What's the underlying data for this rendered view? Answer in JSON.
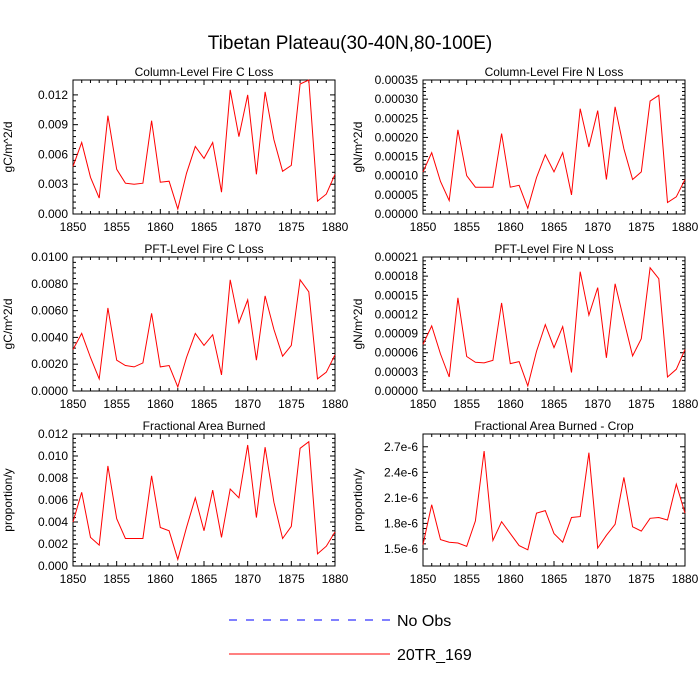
{
  "title": "Tibetan Plateau(30-40N,80-100E)",
  "legend": {
    "items": [
      {
        "label": "No Obs",
        "color": "#0000ff",
        "dash": true
      },
      {
        "label": "20TR_169",
        "color": "#ff0000",
        "dash": false
      }
    ]
  },
  "chart_data": [
    {
      "type": "line",
      "title": "Column-Level Fire C Loss",
      "ylabel": "gC/m^2/d",
      "xlim": [
        1850,
        1880
      ],
      "xticks": [
        "1850",
        "1855",
        "1860",
        "1865",
        "1870",
        "1875",
        "1880"
      ],
      "ylim": [
        0,
        0.0135
      ],
      "yticks": [
        "0.000",
        "0.003",
        "0.006",
        "0.009",
        "0.012"
      ],
      "ytick_values": [
        0,
        0.003,
        0.006,
        0.009,
        0.012
      ],
      "series": [
        {
          "name": "20TR_169",
          "color": "#ff0000",
          "x": [
            1850,
            1851,
            1852,
            1853,
            1854,
            1855,
            1856,
            1857,
            1858,
            1859,
            1860,
            1861,
            1862,
            1863,
            1864,
            1865,
            1866,
            1867,
            1868,
            1869,
            1870,
            1871,
            1872,
            1873,
            1874,
            1875,
            1876,
            1877,
            1878,
            1879,
            1880
          ],
          "y": [
            0.0048,
            0.0072,
            0.0037,
            0.0016,
            0.0099,
            0.0045,
            0.0031,
            0.003,
            0.0031,
            0.0094,
            0.0032,
            0.0033,
            0.0005,
            0.0041,
            0.0068,
            0.0056,
            0.0072,
            0.0022,
            0.0125,
            0.0078,
            0.012,
            0.004,
            0.0123,
            0.0075,
            0.0043,
            0.0049,
            0.0131,
            0.0135,
            0.0013,
            0.002,
            0.004
          ]
        }
      ]
    },
    {
      "type": "line",
      "title": "Column-Level Fire N Loss",
      "ylabel": "gN/m^2/d",
      "xlim": [
        1850,
        1880
      ],
      "xticks": [
        "1850",
        "1855",
        "1860",
        "1865",
        "1870",
        "1875",
        "1880"
      ],
      "ylim": [
        0,
        0.00035
      ],
      "yticks": [
        "0.00000",
        "0.00005",
        "0.00010",
        "0.00015",
        "0.00020",
        "0.00025",
        "0.00030",
        "0.00035"
      ],
      "ytick_values": [
        0,
        5e-05,
        0.0001,
        0.00015,
        0.0002,
        0.00025,
        0.0003,
        0.00035
      ],
      "series": [
        {
          "name": "20TR_169",
          "color": "#ff0000",
          "x": [
            1850,
            1851,
            1852,
            1853,
            1854,
            1855,
            1856,
            1857,
            1858,
            1859,
            1860,
            1861,
            1862,
            1863,
            1864,
            1865,
            1866,
            1867,
            1868,
            1869,
            1870,
            1871,
            1872,
            1873,
            1874,
            1875,
            1876,
            1877,
            1878,
            1879,
            1880
          ],
          "y": [
            0.00011,
            0.00016,
            8.5e-05,
            3.5e-05,
            0.00022,
            0.0001,
            7e-05,
            7e-05,
            7e-05,
            0.00021,
            7e-05,
            7.5e-05,
            1.5e-05,
            9.5e-05,
            0.000155,
            0.00011,
            0.00016,
            5e-05,
            0.000275,
            0.000175,
            0.00027,
            9e-05,
            0.00028,
            0.00017,
            9e-05,
            0.00011,
            0.000295,
            0.00031,
            3e-05,
            4.5e-05,
            9e-05
          ]
        }
      ]
    },
    {
      "type": "line",
      "title": "PFT-Level Fire C Loss",
      "ylabel": "gC/m^2/d",
      "xlim": [
        1850,
        1880
      ],
      "xticks": [
        "1850",
        "1855",
        "1860",
        "1865",
        "1870",
        "1875",
        "1880"
      ],
      "ylim": [
        0,
        0.01
      ],
      "yticks": [
        "0.0000",
        "0.0020",
        "0.0040",
        "0.0060",
        "0.0080",
        "0.0100"
      ],
      "ytick_values": [
        0,
        0.002,
        0.004,
        0.006,
        0.008,
        0.01
      ],
      "series": [
        {
          "name": "20TR_169",
          "color": "#ff0000",
          "x": [
            1850,
            1851,
            1852,
            1853,
            1854,
            1855,
            1856,
            1857,
            1858,
            1859,
            1860,
            1861,
            1862,
            1863,
            1864,
            1865,
            1866,
            1867,
            1868,
            1869,
            1870,
            1871,
            1872,
            1873,
            1874,
            1875,
            1876,
            1877,
            1878,
            1879,
            1880
          ],
          "y": [
            0.0031,
            0.0043,
            0.0025,
            0.0009,
            0.0062,
            0.0023,
            0.0019,
            0.0018,
            0.0021,
            0.0058,
            0.0018,
            0.0019,
            0.0003,
            0.0025,
            0.0043,
            0.0034,
            0.0042,
            0.0012,
            0.0083,
            0.0051,
            0.0068,
            0.0023,
            0.0071,
            0.0046,
            0.0026,
            0.0034,
            0.0083,
            0.0074,
            0.0009,
            0.0014,
            0.0027
          ]
        }
      ]
    },
    {
      "type": "line",
      "title": "PFT-Level Fire N Loss",
      "ylabel": "gN/m^2/d",
      "xlim": [
        1850,
        1880
      ],
      "xticks": [
        "1850",
        "1855",
        "1860",
        "1865",
        "1870",
        "1875",
        "1880"
      ],
      "ylim": [
        0,
        0.00021
      ],
      "yticks": [
        "0.00000",
        "0.00003",
        "0.00006",
        "0.00009",
        "0.00012",
        "0.00015",
        "0.00018",
        "0.00021"
      ],
      "ytick_values": [
        0,
        3e-05,
        6e-05,
        9e-05,
        0.00012,
        0.00015,
        0.00018,
        0.00021
      ],
      "series": [
        {
          "name": "20TR_169",
          "color": "#ff0000",
          "x": [
            1850,
            1851,
            1852,
            1853,
            1854,
            1855,
            1856,
            1857,
            1858,
            1859,
            1860,
            1861,
            1862,
            1863,
            1864,
            1865,
            1866,
            1867,
            1868,
            1869,
            1870,
            1871,
            1872,
            1873,
            1874,
            1875,
            1876,
            1877,
            1878,
            1879,
            1880
          ],
          "y": [
            7.3e-05,
            0.000102,
            5.8e-05,
            2.2e-05,
            0.000146,
            5.4e-05,
            4.5e-05,
            4.4e-05,
            4.8e-05,
            0.000138,
            4.3e-05,
            4.6e-05,
            8e-06,
            6.2e-05,
            0.000104,
            6.8e-05,
            0.000101,
            2.9e-05,
            0.000187,
            0.000119,
            0.000162,
            5.2e-05,
            0.000168,
            0.000111,
            5.5e-05,
            8.2e-05,
            0.000193,
            0.000176,
            2.2e-05,
            3.4e-05,
            6.5e-05
          ]
        }
      ]
    },
    {
      "type": "line",
      "title": "Fractional Area Burned",
      "ylabel": "proportion/y",
      "xlim": [
        1850,
        1880
      ],
      "xticks": [
        "1850",
        "1855",
        "1860",
        "1865",
        "1870",
        "1875",
        "1880"
      ],
      "ylim": [
        0,
        0.012
      ],
      "yticks": [
        "0.000",
        "0.002",
        "0.004",
        "0.006",
        "0.008",
        "0.010",
        "0.012"
      ],
      "ytick_values": [
        0,
        0.002,
        0.004,
        0.006,
        0.008,
        0.01,
        0.012
      ],
      "series": [
        {
          "name": "20TR_169",
          "color": "#ff0000",
          "x": [
            1850,
            1851,
            1852,
            1853,
            1854,
            1855,
            1856,
            1857,
            1858,
            1859,
            1860,
            1861,
            1862,
            1863,
            1864,
            1865,
            1866,
            1867,
            1868,
            1869,
            1870,
            1871,
            1872,
            1873,
            1874,
            1875,
            1876,
            1877,
            1878,
            1879,
            1880
          ],
          "y": [
            0.004,
            0.0067,
            0.0026,
            0.0019,
            0.0091,
            0.0043,
            0.0025,
            0.0025,
            0.0025,
            0.0082,
            0.0035,
            0.0032,
            0.0006,
            0.0035,
            0.0062,
            0.0032,
            0.0069,
            0.0026,
            0.007,
            0.0062,
            0.011,
            0.0044,
            0.0108,
            0.0058,
            0.0025,
            0.0036,
            0.0107,
            0.0113,
            0.0011,
            0.0018,
            0.0031
          ]
        }
      ]
    },
    {
      "type": "line",
      "title": "Fractional Area Burned - Crop",
      "ylabel": "proportion/y",
      "xlim": [
        1850,
        1880
      ],
      "xticks": [
        "1850",
        "1855",
        "1860",
        "1865",
        "1870",
        "1875",
        "1880"
      ],
      "ylim": [
        1.3e-06,
        2.85e-06
      ],
      "yticks": [
        "1.5e-6",
        "1.8e-6",
        "2.1e-6",
        "2.4e-6",
        "2.7e-6"
      ],
      "ytick_values": [
        1.5e-06,
        1.8e-06,
        2.1e-06,
        2.4e-06,
        2.7e-06
      ],
      "series": [
        {
          "name": "20TR_169",
          "color": "#ff0000",
          "x": [
            1850,
            1851,
            1852,
            1853,
            1854,
            1855,
            1856,
            1857,
            1858,
            1859,
            1860,
            1861,
            1862,
            1863,
            1864,
            1865,
            1866,
            1867,
            1868,
            1869,
            1870,
            1871,
            1872,
            1873,
            1874,
            1875,
            1876,
            1877,
            1878,
            1879,
            1880
          ],
          "y": [
            1.55e-06,
            2.02e-06,
            1.61e-06,
            1.58e-06,
            1.57e-06,
            1.53e-06,
            1.83e-06,
            2.65e-06,
            1.6e-06,
            1.82e-06,
            1.68e-06,
            1.54e-06,
            1.49e-06,
            1.92e-06,
            1.95e-06,
            1.68e-06,
            1.58e-06,
            1.87e-06,
            1.88e-06,
            2.63e-06,
            1.51e-06,
            1.66e-06,
            1.79e-06,
            2.34e-06,
            1.76e-06,
            1.71e-06,
            1.86e-06,
            1.87e-06,
            1.84e-06,
            2.26e-06,
            1.92e-06
          ]
        }
      ]
    }
  ]
}
